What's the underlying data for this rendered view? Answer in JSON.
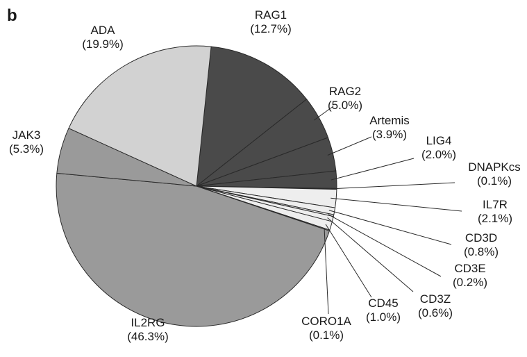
{
  "panel_label": "b",
  "chart_data": {
    "type": "pie",
    "title": "",
    "unit": "%",
    "slices": [
      {
        "label": "RAG1",
        "value": 12.7,
        "color": "#4a4a4a"
      },
      {
        "label": "RAG2",
        "value": 5.0,
        "color": "#4a4a4a"
      },
      {
        "label": "Artemis",
        "value": 3.9,
        "color": "#4a4a4a"
      },
      {
        "label": "LIG4",
        "value": 2.0,
        "color": "#4a4a4a"
      },
      {
        "label": "DNAPKcs",
        "value": 0.1,
        "color": "#4a4a4a"
      },
      {
        "label": "IL7R",
        "value": 2.1,
        "color": "#eeeeee"
      },
      {
        "label": "CD3D",
        "value": 0.8,
        "color": "#eeeeee"
      },
      {
        "label": "CD3E",
        "value": 0.2,
        "color": "#eeeeee"
      },
      {
        "label": "CD3Z",
        "value": 0.6,
        "color": "#eeeeee"
      },
      {
        "label": "CD45",
        "value": 1.0,
        "color": "#eeeeee"
      },
      {
        "label": "CORO1A",
        "value": 0.1,
        "color": "#eeeeee"
      },
      {
        "label": "IL2RG",
        "value": 46.3,
        "color": "#9a9a9a"
      },
      {
        "label": "JAK3",
        "value": 5.3,
        "color": "#9a9a9a"
      },
      {
        "label": "ADA",
        "value": 19.9,
        "color": "#d2d2d2"
      }
    ]
  }
}
